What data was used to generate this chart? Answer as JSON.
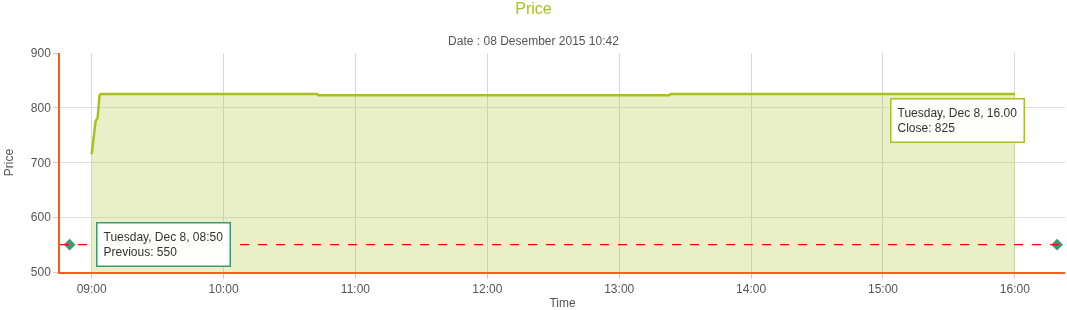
{
  "chart_data": {
    "type": "area",
    "title": "Price",
    "subtitle": "Date : 08 Desember 2015 10:42",
    "xlabel": "Time",
    "ylabel": "Price",
    "series": [
      {
        "color": "#a9c01f",
        "x": [
          9.0,
          9.03,
          9.045,
          9.06,
          9.07,
          10.71,
          10.72,
          13.38,
          13.39,
          16.0
        ],
        "values": [
          715,
          776,
          781,
          823,
          825,
          825,
          823,
          823,
          825,
          825
        ]
      },
      {
        "type": "scatter",
        "color": "#3d9970",
        "marker": "diamond",
        "x": [
          8.833,
          16.32
        ],
        "values": [
          550,
          550
        ]
      }
    ],
    "ref_lines": [
      {
        "axis": "y",
        "value": 550,
        "color": "#ff0000",
        "line_style": "dashed"
      }
    ],
    "annotations": [
      {
        "text": "Tuesday, Dec 8, 08:50\nPrevious: 550",
        "x": 8.833,
        "y": 550
      },
      {
        "text": "Tuesday, Dec 8, 16.00\nClose: 825",
        "x": 16.0,
        "y": 825
      }
    ],
    "xlim": [
      8.76,
      16.38
    ],
    "xticks": [
      {
        "value": 9,
        "label": "09:00"
      },
      {
        "value": 10,
        "label": "10:00"
      },
      {
        "value": 11,
        "label": "11:00"
      },
      {
        "value": 12,
        "label": "12:00"
      },
      {
        "value": 13,
        "label": "13:00"
      },
      {
        "value": 14,
        "label": "14:00"
      },
      {
        "value": 15,
        "label": "15:00"
      },
      {
        "value": 16,
        "label": "16:00"
      }
    ],
    "ylim": [
      500,
      900
    ],
    "yticks": [
      500,
      600,
      700,
      800,
      900
    ],
    "grid": true
  }
}
